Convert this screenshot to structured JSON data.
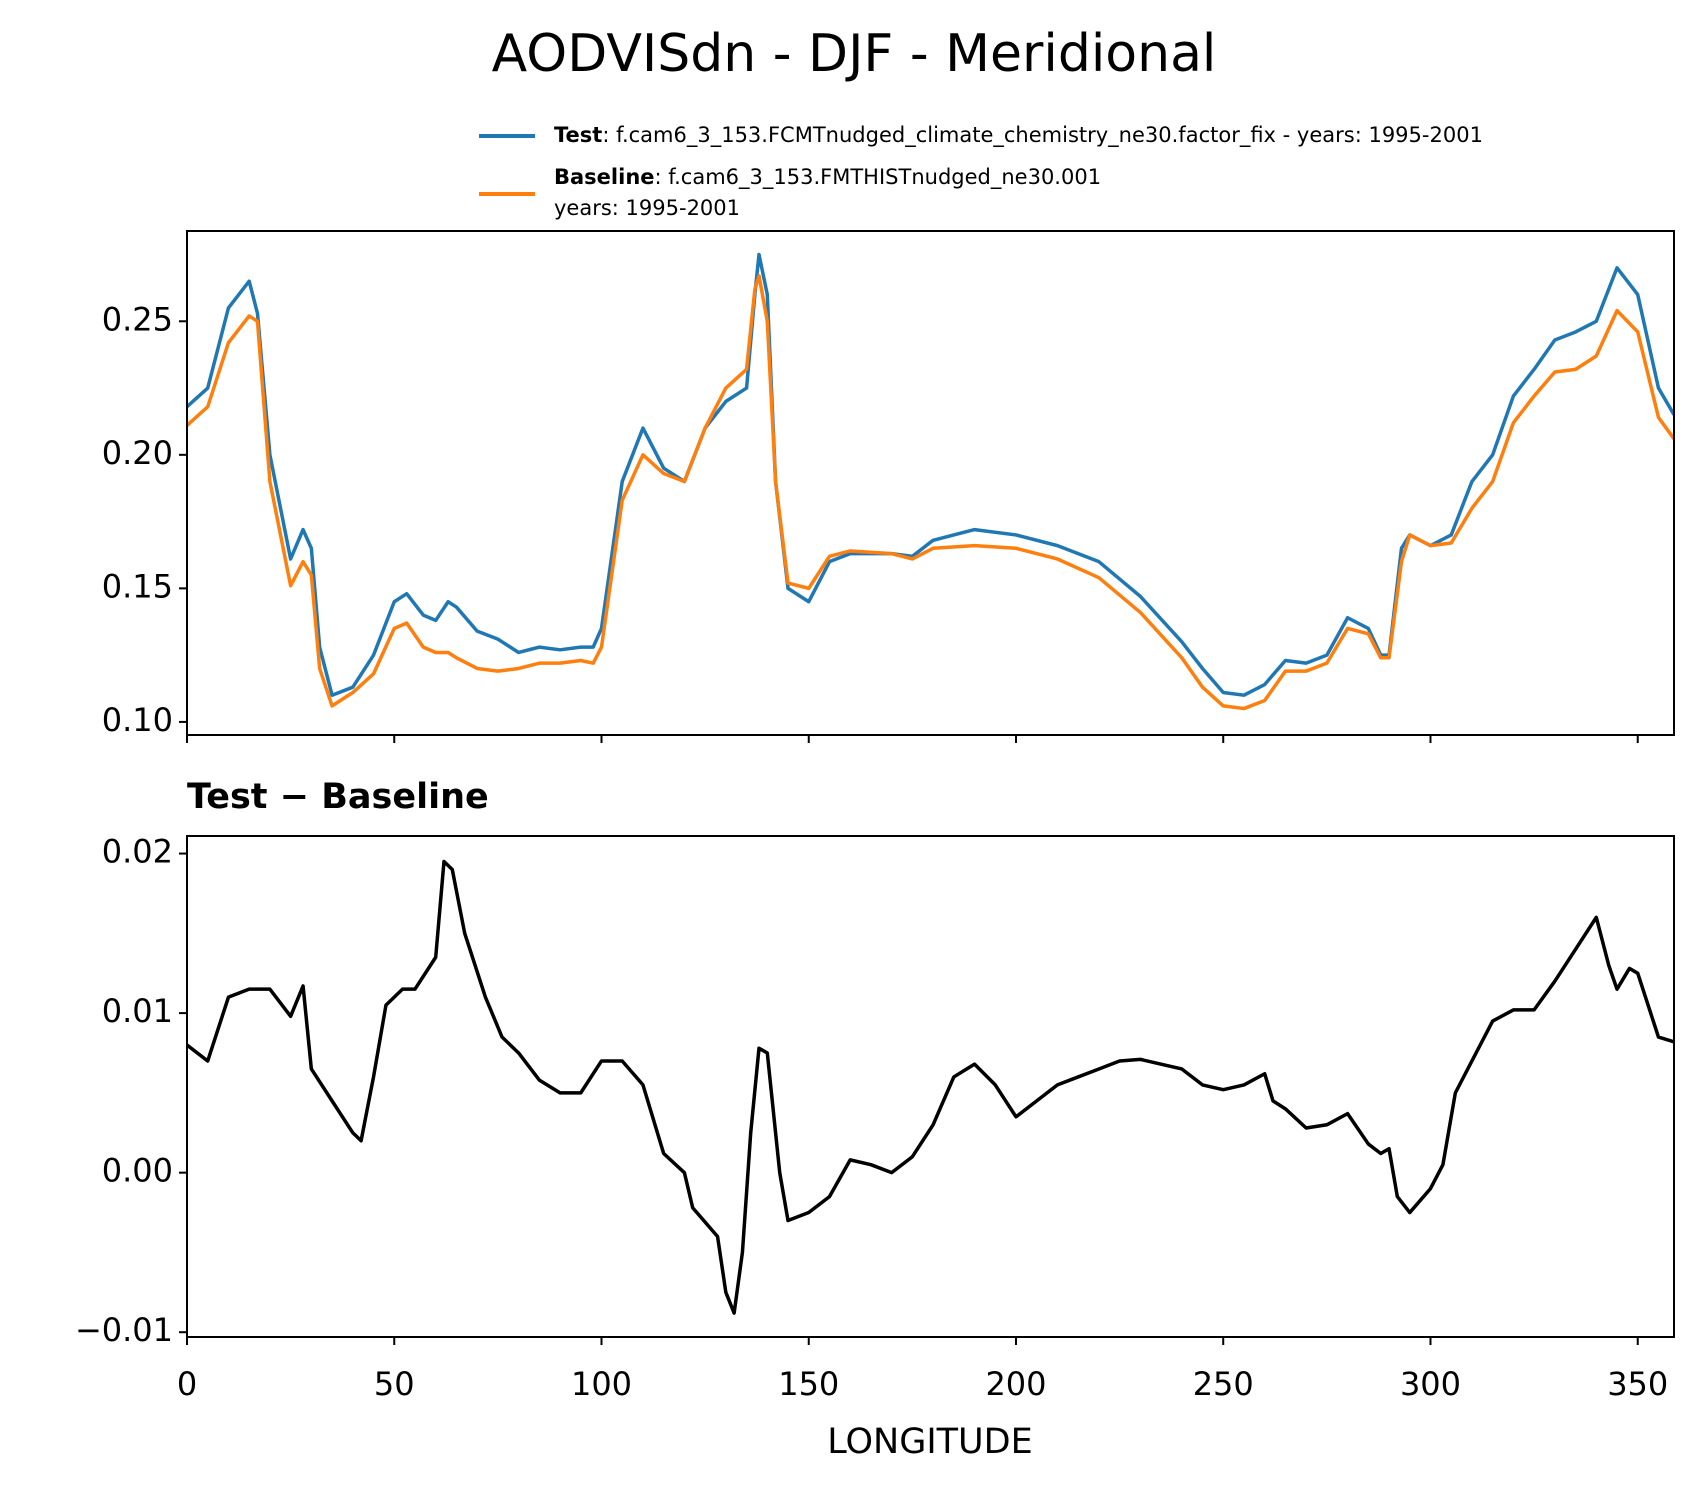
{
  "chart_data": [
    {
      "type": "line",
      "title": "AODVISdn - DJF - Meridional",
      "x": [
        0,
        5,
        10,
        15,
        17,
        20,
        25,
        28,
        30,
        32,
        35,
        40,
        45,
        50,
        53,
        57,
        60,
        63,
        65,
        70,
        75,
        80,
        85,
        90,
        95,
        98,
        100,
        105,
        110,
        115,
        120,
        125,
        130,
        135,
        137,
        138,
        140,
        142,
        145,
        150,
        155,
        160,
        170,
        175,
        180,
        190,
        200,
        210,
        220,
        230,
        240,
        245,
        250,
        255,
        260,
        265,
        270,
        275,
        280,
        285,
        288,
        290,
        293,
        295,
        300,
        305,
        310,
        315,
        320,
        325,
        330,
        335,
        340,
        345,
        350,
        355,
        358.75
      ],
      "series": [
        {
          "name": "Test",
          "color": "#1f77b4",
          "legend_text": [
            ": f.cam6_3_153.FCMTnudged_climate_chemistry_ne30.factor_fix - years: 1995-2001"
          ],
          "values": [
            0.218,
            0.225,
            0.255,
            0.265,
            0.253,
            0.2,
            0.161,
            0.172,
            0.165,
            0.128,
            0.11,
            0.113,
            0.125,
            0.145,
            0.148,
            0.14,
            0.138,
            0.145,
            0.143,
            0.134,
            0.131,
            0.126,
            0.128,
            0.127,
            0.128,
            0.128,
            0.135,
            0.19,
            0.21,
            0.195,
            0.19,
            0.21,
            0.22,
            0.225,
            0.26,
            0.275,
            0.26,
            0.19,
            0.15,
            0.145,
            0.16,
            0.163,
            0.163,
            0.162,
            0.168,
            0.172,
            0.17,
            0.166,
            0.16,
            0.147,
            0.13,
            0.12,
            0.111,
            0.11,
            0.114,
            0.123,
            0.122,
            0.125,
            0.139,
            0.135,
            0.125,
            0.125,
            0.165,
            0.17,
            0.166,
            0.17,
            0.19,
            0.2,
            0.222,
            0.232,
            0.243,
            0.246,
            0.25,
            0.27,
            0.26,
            0.225,
            0.215
          ]
        },
        {
          "name": "Baseline",
          "color": "#ff7f0e",
          "legend_text": [
            ": f.cam6_3_153.FMTHISTnudged_ne30.001",
            "years: 1995-2001"
          ],
          "values": [
            0.211,
            0.218,
            0.242,
            0.252,
            0.25,
            0.19,
            0.151,
            0.16,
            0.155,
            0.12,
            0.106,
            0.111,
            0.118,
            0.135,
            0.137,
            0.128,
            0.126,
            0.126,
            0.124,
            0.12,
            0.119,
            0.12,
            0.122,
            0.122,
            0.123,
            0.122,
            0.128,
            0.183,
            0.2,
            0.193,
            0.19,
            0.21,
            0.225,
            0.232,
            0.262,
            0.267,
            0.25,
            0.19,
            0.152,
            0.15,
            0.162,
            0.164,
            0.163,
            0.161,
            0.165,
            0.166,
            0.165,
            0.161,
            0.154,
            0.141,
            0.124,
            0.113,
            0.106,
            0.105,
            0.108,
            0.119,
            0.119,
            0.122,
            0.135,
            0.133,
            0.124,
            0.124,
            0.16,
            0.17,
            0.166,
            0.167,
            0.18,
            0.19,
            0.212,
            0.222,
            0.231,
            0.232,
            0.237,
            0.254,
            0.246,
            0.214,
            0.206
          ]
        }
      ],
      "xlim": [
        0,
        358.75
      ],
      "xticks": [
        0,
        50,
        100,
        150,
        200,
        250,
        300,
        350
      ],
      "ylim": [
        0.0951,
        0.2838
      ],
      "yticks": [
        {
          "value": 0.1,
          "label": "0.10"
        },
        0.15,
        {
          "value": 0.2,
          "label": "0.20"
        },
        0.25
      ]
    },
    {
      "type": "line",
      "title": "Test − Baseline",
      "xlabel": "LONGITUDE",
      "x": [
        0,
        5,
        10,
        15,
        20,
        25,
        28,
        30,
        35,
        40,
        42,
        45,
        48,
        52,
        55,
        60,
        62,
        64,
        67,
        72,
        76,
        80,
        85,
        90,
        95,
        100,
        105,
        110,
        115,
        120,
        122,
        128,
        130,
        132,
        134,
        136,
        138,
        140,
        143,
        145,
        150,
        155,
        160,
        165,
        170,
        175,
        180,
        185,
        190,
        195,
        200,
        205,
        210,
        215,
        220,
        225,
        230,
        235,
        240,
        245,
        250,
        255,
        260,
        262,
        265,
        270,
        275,
        280,
        285,
        288,
        290,
        292,
        295,
        300,
        303,
        306,
        310,
        315,
        320,
        325,
        330,
        335,
        340,
        343,
        345,
        348,
        350,
        355,
        358.75
      ],
      "series": [
        {
          "color": "#000000",
          "values": [
            0.008,
            0.007,
            0.011,
            0.0115,
            0.0115,
            0.0098,
            0.0117,
            0.0065,
            0.0045,
            0.0025,
            0.002,
            0.006,
            0.0105,
            0.0115,
            0.0115,
            0.0135,
            0.0195,
            0.019,
            0.015,
            0.011,
            0.0085,
            0.0075,
            0.0058,
            0.005,
            0.005,
            0.007,
            0.007,
            0.0055,
            0.0012,
            0.0,
            -0.0022,
            -0.004,
            -0.0075,
            -0.0088,
            -0.005,
            0.0025,
            0.0078,
            0.0075,
            0.0,
            -0.003,
            -0.0025,
            -0.0015,
            0.0008,
            0.0005,
            0.0,
            0.001,
            0.003,
            0.006,
            0.0068,
            0.0055,
            0.0035,
            0.0045,
            0.0055,
            0.006,
            0.0065,
            0.007,
            0.0071,
            0.0068,
            0.0065,
            0.0055,
            0.0052,
            0.0055,
            0.0062,
            0.0045,
            0.004,
            0.0028,
            0.003,
            0.0037,
            0.0018,
            0.0012,
            0.0015,
            -0.0015,
            -0.0025,
            -0.001,
            0.0005,
            0.005,
            0.007,
            0.0095,
            0.0102,
            0.0102,
            0.012,
            0.014,
            0.016,
            0.013,
            0.0115,
            0.0128,
            0.0125,
            0.0085,
            0.0082
          ]
        }
      ],
      "xlim": [
        0,
        358.75
      ],
      "xticks": [
        0,
        50,
        100,
        150,
        200,
        250,
        300,
        350
      ],
      "ylim": [
        -0.0103,
        0.0211
      ],
      "yticks": [
        {
          "value": -0.01,
          "label": "−0.01"
        },
        {
          "value": 0,
          "label": "0.00"
        },
        0.01,
        0.02
      ]
    }
  ]
}
